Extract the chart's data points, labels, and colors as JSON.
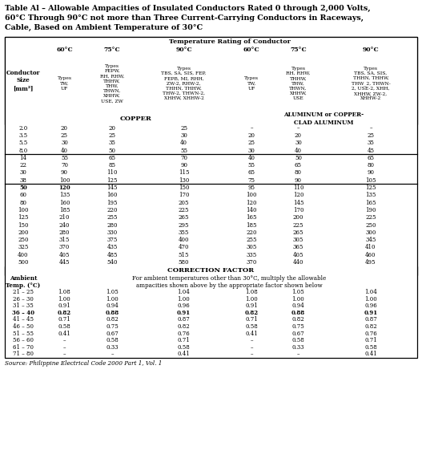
{
  "title_lines": [
    "Table Al – Allowable Ampacities of Insulated Conductors Rated 0 through 2,000 Volts,",
    "60°C Through 90°C not more than Three Current-Carrying Conductors in Raceways,",
    "Cable, Based on Ambient Temperature of 30°C"
  ],
  "temp_rating_header": "Temperature Rating of Conductor",
  "copper_header": "COPPER",
  "aluminum_header": "ALUMINUM or COPPER-\nCLAD ALUMINUM",
  "correction_header": "CORRECTION FACTOR",
  "correction_desc": "For ambient temperatures other than 30°C, multiply the allowable\nampacities shown above by the appropriate factor shown below",
  "col_temp_headers": [
    "60°C",
    "75°C",
    "90°C",
    "60°C",
    "75°C",
    "90°C"
  ],
  "col_type_headers": [
    "Types\nTW,\nUF",
    "Types\nFEPW,\nRH, RHW,\nTHHW,\nTHW,\nTHWN,\nXHHW,\nUSE, ZW",
    "Types\nTBS, SA, SIS, FEP,\nFEPB, MI, RHH,\nZW-2, RHW-2,\nTHHN, THHW,\nTHW-2, THWN-2,\nXHHW, XHHW-2",
    "Types\nTW,\nUF",
    "Types\nRH, RHW,\nTHHW,\nTHW,\nTHWN,\nXHHW,\nUSE",
    "Types\nTBS, SA, SIS,\nTHHN, THHW,\nTHW_2, THWN-\n2, USE-2, XHH,\nXHHW, ZW-2,\nXHHW-2"
  ],
  "conductor_header": "Conductor\nSize\n[mm²]",
  "conductor_sizes": [
    "2.0",
    "3.5",
    "5.5",
    "8.0",
    "14",
    "22",
    "30",
    "38",
    "50",
    "60",
    "80",
    "100",
    "125",
    "150",
    "200",
    "250",
    "325",
    "400",
    "500"
  ],
  "bold_sizes": [
    "50"
  ],
  "copper_data": [
    [
      "20",
      "20",
      "25"
    ],
    [
      "25",
      "25",
      "30"
    ],
    [
      "30",
      "35",
      "40"
    ],
    [
      "40",
      "50",
      "55"
    ],
    [
      "55",
      "65",
      "70"
    ],
    [
      "70",
      "85",
      "90"
    ],
    [
      "90",
      "110",
      "115"
    ],
    [
      "100",
      "125",
      "130"
    ],
    [
      "120",
      "145",
      "150"
    ],
    [
      "135",
      "160",
      "170"
    ],
    [
      "160",
      "195",
      "205"
    ],
    [
      "185",
      "220",
      "225"
    ],
    [
      "210",
      "255",
      "265"
    ],
    [
      "240",
      "280",
      "295"
    ],
    [
      "280",
      "330",
      "355"
    ],
    [
      "315",
      "375",
      "400"
    ],
    [
      "370",
      "435",
      "470"
    ],
    [
      "405",
      "485",
      "515"
    ],
    [
      "445",
      "540",
      "580"
    ]
  ],
  "bold_copper": [
    [
      false,
      false,
      false
    ],
    [
      false,
      false,
      false
    ],
    [
      false,
      false,
      false
    ],
    [
      false,
      false,
      false
    ],
    [
      false,
      false,
      false
    ],
    [
      false,
      false,
      false
    ],
    [
      false,
      false,
      false
    ],
    [
      false,
      false,
      false
    ],
    [
      true,
      false,
      false
    ],
    [
      false,
      false,
      false
    ],
    [
      false,
      false,
      false
    ],
    [
      false,
      false,
      false
    ],
    [
      false,
      false,
      false
    ],
    [
      false,
      false,
      false
    ],
    [
      false,
      false,
      false
    ],
    [
      false,
      false,
      false
    ],
    [
      false,
      false,
      false
    ],
    [
      false,
      false,
      false
    ],
    [
      false,
      false,
      false
    ]
  ],
  "aluminum_data": [
    [
      "–",
      "–",
      "–"
    ],
    [
      "20",
      "20",
      "25"
    ],
    [
      "25",
      "30",
      "35"
    ],
    [
      "30",
      "40",
      "45"
    ],
    [
      "40",
      "50",
      "65"
    ],
    [
      "55",
      "65",
      "80"
    ],
    [
      "65",
      "80",
      "90"
    ],
    [
      "75",
      "90",
      "105"
    ],
    [
      "95",
      "110",
      "125"
    ],
    [
      "100",
      "120",
      "135"
    ],
    [
      "120",
      "145",
      "165"
    ],
    [
      "140",
      "170",
      "190"
    ],
    [
      "165",
      "200",
      "225"
    ],
    [
      "185",
      "225",
      "250"
    ],
    [
      "220",
      "265",
      "300"
    ],
    [
      "255",
      "305",
      "345"
    ],
    [
      "305",
      "365",
      "410"
    ],
    [
      "335",
      "405",
      "460"
    ],
    [
      "370",
      "440",
      "495"
    ]
  ],
  "thick_after_rows": [
    3,
    7
  ],
  "ambient_temps": [
    "21 – 25",
    "26 – 30",
    "31 – 35",
    "36 – 40",
    "41 – 45",
    "46 – 50",
    "51 – 55",
    "56 – 60",
    "61 – 70",
    "71 – 80"
  ],
  "bold_ambient": [
    false,
    false,
    false,
    true,
    false,
    false,
    false,
    false,
    false,
    false
  ],
  "correction_data": [
    [
      "1.08",
      "1.05",
      "1.04",
      "1.08",
      "1.05",
      "1.04"
    ],
    [
      "1.00",
      "1.00",
      "1.00",
      "1.00",
      "1.00",
      "1.00"
    ],
    [
      "0.91",
      "0.94",
      "0.96",
      "0.91",
      "0.94",
      "0.96"
    ],
    [
      "0.82",
      "0.88",
      "0.91",
      "0.82",
      "0.88",
      "0.91"
    ],
    [
      "0.71",
      "0.82",
      "0.87",
      "0.71",
      "0.82",
      "0.87"
    ],
    [
      "0.58",
      "0.75",
      "0.82",
      "0.58",
      "0.75",
      "0.82"
    ],
    [
      "0.41",
      "0.67",
      "0.76",
      "0.41",
      "0.67",
      "0.76"
    ],
    [
      "–",
      "0.58",
      "0.71",
      "–",
      "0.58",
      "0.71"
    ],
    [
      "–",
      "0.33",
      "0.58",
      "–",
      "0.33",
      "0.58"
    ],
    [
      "–",
      "–",
      "0.41",
      "–",
      "–",
      "0.41"
    ]
  ],
  "bold_correction": [
    false,
    false,
    false,
    true,
    false,
    false,
    false,
    false,
    false,
    false
  ],
  "source": "Source: Philippine Electrical Code 2000 Part 1, Vol. 1"
}
